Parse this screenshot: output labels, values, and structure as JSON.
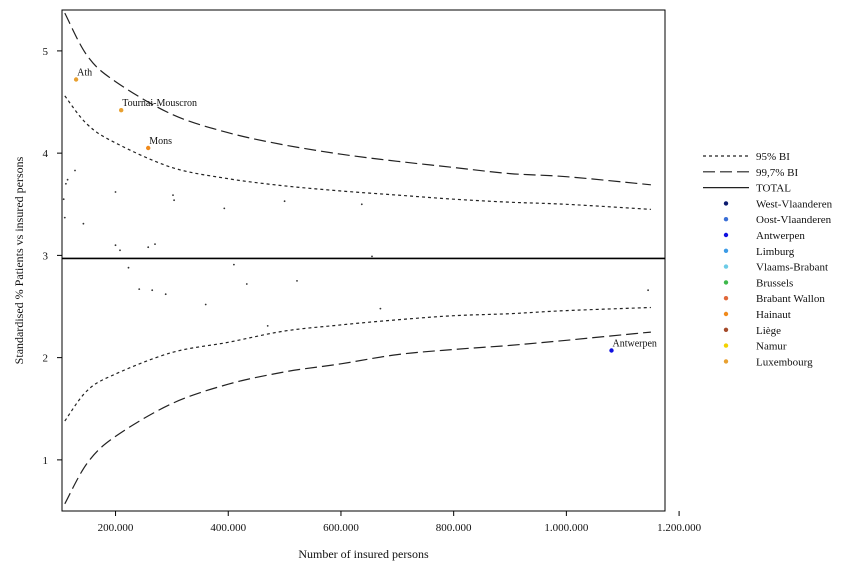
{
  "chart_data": {
    "type": "scatter",
    "title": "",
    "xlabel": "Number of insured persons",
    "ylabel": "Standardised % Patients vs insured persons",
    "xlim": [
      105000,
      1175000
    ],
    "ylim": [
      0.5,
      5.4
    ],
    "x_ticks": [
      200000,
      400000,
      600000,
      800000,
      1000000,
      1200000
    ],
    "x_tick_labels": [
      "200.000",
      "400.000",
      "600.000",
      "800.000",
      "1.000.000",
      "1.200.000"
    ],
    "y_ticks": [
      1,
      2,
      3,
      4,
      5
    ],
    "y_tick_labels": [
      "1",
      "2",
      "3",
      "4",
      "5"
    ],
    "total": 2.97,
    "reference_lines": [
      {
        "name": "95% BI",
        "style": "dotted",
        "upper": [
          [
            110000,
            4.56
          ],
          [
            150000,
            4.28
          ],
          [
            200000,
            4.1
          ],
          [
            300000,
            3.86
          ],
          [
            400000,
            3.75
          ],
          [
            500000,
            3.68
          ],
          [
            600000,
            3.63
          ],
          [
            700000,
            3.59
          ],
          [
            800000,
            3.55
          ],
          [
            900000,
            3.52
          ],
          [
            1000000,
            3.5
          ],
          [
            1150000,
            3.45
          ]
        ],
        "lower": [
          [
            110000,
            1.38
          ],
          [
            150000,
            1.68
          ],
          [
            200000,
            1.84
          ],
          [
            300000,
            2.05
          ],
          [
            400000,
            2.15
          ],
          [
            500000,
            2.26
          ],
          [
            600000,
            2.32
          ],
          [
            700000,
            2.37
          ],
          [
            800000,
            2.41
          ],
          [
            900000,
            2.43
          ],
          [
            1000000,
            2.46
          ],
          [
            1150000,
            2.49
          ]
        ]
      },
      {
        "name": "99,7% BI",
        "style": "long-dash",
        "upper": [
          [
            110000,
            5.37
          ],
          [
            150000,
            4.95
          ],
          [
            200000,
            4.7
          ],
          [
            300000,
            4.38
          ],
          [
            400000,
            4.2
          ],
          [
            500000,
            4.08
          ],
          [
            600000,
            3.99
          ],
          [
            700000,
            3.92
          ],
          [
            800000,
            3.86
          ],
          [
            900000,
            3.8
          ],
          [
            1000000,
            3.77
          ],
          [
            1150000,
            3.69
          ]
        ],
        "lower": [
          [
            110000,
            0.57
          ],
          [
            150000,
            0.97
          ],
          [
            200000,
            1.23
          ],
          [
            300000,
            1.55
          ],
          [
            400000,
            1.74
          ],
          [
            500000,
            1.86
          ],
          [
            600000,
            1.94
          ],
          [
            700000,
            2.03
          ],
          [
            800000,
            2.08
          ],
          [
            900000,
            2.12
          ],
          [
            1000000,
            2.17
          ],
          [
            1150000,
            2.25
          ]
        ]
      }
    ],
    "points": [
      {
        "x": 130000,
        "y": 4.72,
        "label": "Ath",
        "province": "Luxembourg"
      },
      {
        "x": 210000,
        "y": 4.42,
        "label": "Tournai-Mouscron",
        "province": "Luxembourg"
      },
      {
        "x": 258000,
        "y": 4.05,
        "label": "Mons",
        "province": "Hainaut"
      },
      {
        "x": 1080000,
        "y": 2.07,
        "label": "Antwerpen",
        "province": "Antwerpen"
      },
      {
        "x": 108000,
        "y": 3.55,
        "label": "",
        "province": ""
      },
      {
        "x": 112000,
        "y": 3.7,
        "label": "",
        "province": ""
      },
      {
        "x": 115000,
        "y": 3.74,
        "label": "",
        "province": ""
      },
      {
        "x": 110000,
        "y": 3.37,
        "label": "",
        "province": ""
      },
      {
        "x": 128000,
        "y": 3.83,
        "label": "",
        "province": ""
      },
      {
        "x": 143000,
        "y": 3.31,
        "label": "",
        "province": ""
      },
      {
        "x": 200000,
        "y": 3.62,
        "label": "",
        "province": ""
      },
      {
        "x": 200000,
        "y": 3.1,
        "label": "",
        "province": ""
      },
      {
        "x": 208000,
        "y": 3.05,
        "label": "",
        "province": ""
      },
      {
        "x": 258000,
        "y": 3.08,
        "label": "",
        "province": ""
      },
      {
        "x": 270000,
        "y": 3.11,
        "label": "",
        "province": ""
      },
      {
        "x": 302000,
        "y": 3.59,
        "label": "",
        "province": ""
      },
      {
        "x": 304000,
        "y": 3.54,
        "label": "",
        "province": ""
      },
      {
        "x": 393000,
        "y": 3.46,
        "label": "",
        "province": ""
      },
      {
        "x": 500000,
        "y": 3.53,
        "label": "",
        "province": ""
      },
      {
        "x": 637000,
        "y": 3.5,
        "label": "",
        "province": ""
      },
      {
        "x": 655000,
        "y": 2.99,
        "label": "",
        "province": ""
      },
      {
        "x": 223000,
        "y": 2.88,
        "label": "",
        "province": ""
      },
      {
        "x": 242000,
        "y": 2.67,
        "label": "",
        "province": ""
      },
      {
        "x": 265000,
        "y": 2.66,
        "label": "",
        "province": ""
      },
      {
        "x": 289000,
        "y": 2.62,
        "label": "",
        "province": ""
      },
      {
        "x": 360000,
        "y": 2.52,
        "label": "",
        "province": ""
      },
      {
        "x": 410000,
        "y": 2.91,
        "label": "",
        "province": ""
      },
      {
        "x": 433000,
        "y": 2.72,
        "label": "",
        "province": ""
      },
      {
        "x": 470000,
        "y": 2.31,
        "label": "",
        "province": ""
      },
      {
        "x": 522000,
        "y": 2.75,
        "label": "",
        "province": ""
      },
      {
        "x": 670000,
        "y": 2.48,
        "label": "",
        "province": ""
      },
      {
        "x": 1145000,
        "y": 2.66,
        "label": "",
        "province": ""
      }
    ],
    "legend": {
      "placement": "right",
      "line_entries": [
        {
          "label": "95% BI",
          "style": "dotted"
        },
        {
          "label": "99,7% BI",
          "style": "long-dash"
        },
        {
          "label": "TOTAL",
          "style": "solid"
        }
      ],
      "entries": [
        {
          "label": "West-Vlaanderen",
          "color": "#0b1a6e"
        },
        {
          "label": "Oost-Vlaanderen",
          "color": "#3a6fd6"
        },
        {
          "label": "Antwerpen",
          "color": "#1010e0"
        },
        {
          "label": "Limburg",
          "color": "#3c9be6"
        },
        {
          "label": "Vlaams-Brabant",
          "color": "#6ccbe6"
        },
        {
          "label": "Brussels",
          "color": "#3cb84a"
        },
        {
          "label": "Brabant Wallon",
          "color": "#e0683a"
        },
        {
          "label": "Hainaut",
          "color": "#f08a1c"
        },
        {
          "label": "Liège",
          "color": "#a44a2a"
        },
        {
          "label": "Namur",
          "color": "#f2d200"
        },
        {
          "label": "Luxembourg",
          "color": "#e8a030"
        }
      ]
    },
    "grid": false
  }
}
